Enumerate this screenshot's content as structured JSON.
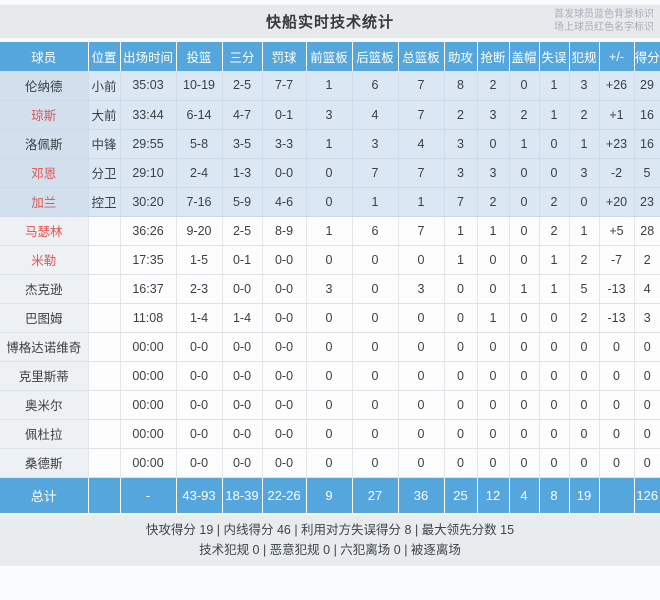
{
  "title": "快船实时技术统计",
  "legend": {
    "line1": "首发球员蓝色背景标识",
    "line2": "场上球员红色名字标识"
  },
  "columns": [
    {
      "key": "player",
      "label": "球员"
    },
    {
      "key": "pos",
      "label": "位置"
    },
    {
      "key": "min",
      "label": "出场时间"
    },
    {
      "key": "fg",
      "label": "投篮"
    },
    {
      "key": "three",
      "label": "三分"
    },
    {
      "key": "ft",
      "label": "罚球"
    },
    {
      "key": "oreb",
      "label": "前篮板"
    },
    {
      "key": "dreb",
      "label": "后篮板"
    },
    {
      "key": "treb",
      "label": "总篮板"
    },
    {
      "key": "ast",
      "label": "助攻"
    },
    {
      "key": "stl",
      "label": "抢断"
    },
    {
      "key": "blk",
      "label": "盖帽"
    },
    {
      "key": "tov",
      "label": "失误"
    },
    {
      "key": "pf",
      "label": "犯规"
    },
    {
      "key": "pm",
      "label": "+/-"
    },
    {
      "key": "pts",
      "label": "得分"
    }
  ],
  "players": [
    {
      "name": "伦纳德",
      "starter": true,
      "oncourt": false,
      "pos": "小前",
      "min": "35:03",
      "fg": "10-19",
      "three": "2-5",
      "ft": "7-7",
      "oreb": "1",
      "dreb": "6",
      "treb": "7",
      "ast": "8",
      "stl": "2",
      "blk": "0",
      "tov": "1",
      "pf": "3",
      "pm": "+26",
      "pts": "29"
    },
    {
      "name": "琼斯",
      "starter": true,
      "oncourt": true,
      "pos": "大前",
      "min": "33:44",
      "fg": "6-14",
      "three": "4-7",
      "ft": "0-1",
      "oreb": "3",
      "dreb": "4",
      "treb": "7",
      "ast": "2",
      "stl": "3",
      "blk": "2",
      "tov": "1",
      "pf": "2",
      "pm": "+1",
      "pts": "16"
    },
    {
      "name": "洛佩斯",
      "starter": true,
      "oncourt": false,
      "pos": "中锋",
      "min": "29:55",
      "fg": "5-8",
      "three": "3-5",
      "ft": "3-3",
      "oreb": "1",
      "dreb": "3",
      "treb": "4",
      "ast": "3",
      "stl": "0",
      "blk": "1",
      "tov": "0",
      "pf": "1",
      "pm": "+23",
      "pts": "16"
    },
    {
      "name": "邓恩",
      "starter": true,
      "oncourt": true,
      "pos": "分卫",
      "min": "29:10",
      "fg": "2-4",
      "three": "1-3",
      "ft": "0-0",
      "oreb": "0",
      "dreb": "7",
      "treb": "7",
      "ast": "3",
      "stl": "3",
      "blk": "0",
      "tov": "0",
      "pf": "3",
      "pm": "-2",
      "pts": "5"
    },
    {
      "name": "加兰",
      "starter": true,
      "oncourt": true,
      "pos": "控卫",
      "min": "30:20",
      "fg": "7-16",
      "three": "5-9",
      "ft": "4-6",
      "oreb": "0",
      "dreb": "1",
      "treb": "1",
      "ast": "7",
      "stl": "2",
      "blk": "0",
      "tov": "2",
      "pf": "0",
      "pm": "+20",
      "pts": "23"
    },
    {
      "name": "马瑟林",
      "starter": false,
      "oncourt": true,
      "pos": "",
      "min": "36:26",
      "fg": "9-20",
      "three": "2-5",
      "ft": "8-9",
      "oreb": "1",
      "dreb": "6",
      "treb": "7",
      "ast": "1",
      "stl": "1",
      "blk": "0",
      "tov": "2",
      "pf": "1",
      "pm": "+5",
      "pts": "28"
    },
    {
      "name": "米勒",
      "starter": false,
      "oncourt": true,
      "pos": "",
      "min": "17:35",
      "fg": "1-5",
      "three": "0-1",
      "ft": "0-0",
      "oreb": "0",
      "dreb": "0",
      "treb": "0",
      "ast": "1",
      "stl": "0",
      "blk": "0",
      "tov": "1",
      "pf": "2",
      "pm": "-7",
      "pts": "2"
    },
    {
      "name": "杰克逊",
      "starter": false,
      "oncourt": false,
      "pos": "",
      "min": "16:37",
      "fg": "2-3",
      "three": "0-0",
      "ft": "0-0",
      "oreb": "3",
      "dreb": "0",
      "treb": "3",
      "ast": "0",
      "stl": "0",
      "blk": "1",
      "tov": "1",
      "pf": "5",
      "pm": "-13",
      "pts": "4"
    },
    {
      "name": "巴图姆",
      "starter": false,
      "oncourt": false,
      "pos": "",
      "min": "11:08",
      "fg": "1-4",
      "three": "1-4",
      "ft": "0-0",
      "oreb": "0",
      "dreb": "0",
      "treb": "0",
      "ast": "0",
      "stl": "1",
      "blk": "0",
      "tov": "0",
      "pf": "2",
      "pm": "-13",
      "pts": "3"
    },
    {
      "name": "博格达诺维奇",
      "starter": false,
      "oncourt": false,
      "pos": "",
      "min": "00:00",
      "fg": "0-0",
      "three": "0-0",
      "ft": "0-0",
      "oreb": "0",
      "dreb": "0",
      "treb": "0",
      "ast": "0",
      "stl": "0",
      "blk": "0",
      "tov": "0",
      "pf": "0",
      "pm": "0",
      "pts": "0"
    },
    {
      "name": "克里斯蒂",
      "starter": false,
      "oncourt": false,
      "pos": "",
      "min": "00:00",
      "fg": "0-0",
      "three": "0-0",
      "ft": "0-0",
      "oreb": "0",
      "dreb": "0",
      "treb": "0",
      "ast": "0",
      "stl": "0",
      "blk": "0",
      "tov": "0",
      "pf": "0",
      "pm": "0",
      "pts": "0"
    },
    {
      "name": "奥米尔",
      "starter": false,
      "oncourt": false,
      "pos": "",
      "min": "00:00",
      "fg": "0-0",
      "three": "0-0",
      "ft": "0-0",
      "oreb": "0",
      "dreb": "0",
      "treb": "0",
      "ast": "0",
      "stl": "0",
      "blk": "0",
      "tov": "0",
      "pf": "0",
      "pm": "0",
      "pts": "0"
    },
    {
      "name": "佩杜拉",
      "starter": false,
      "oncourt": false,
      "pos": "",
      "min": "00:00",
      "fg": "0-0",
      "three": "0-0",
      "ft": "0-0",
      "oreb": "0",
      "dreb": "0",
      "treb": "0",
      "ast": "0",
      "stl": "0",
      "blk": "0",
      "tov": "0",
      "pf": "0",
      "pm": "0",
      "pts": "0"
    },
    {
      "name": "桑德斯",
      "starter": false,
      "oncourt": false,
      "pos": "",
      "min": "00:00",
      "fg": "0-0",
      "three": "0-0",
      "ft": "0-0",
      "oreb": "0",
      "dreb": "0",
      "treb": "0",
      "ast": "0",
      "stl": "0",
      "blk": "0",
      "tov": "0",
      "pf": "0",
      "pm": "0",
      "pts": "0"
    }
  ],
  "total": {
    "name": "总计",
    "pos": "",
    "min": "-",
    "fg": "43-93",
    "three": "18-39",
    "ft": "22-26",
    "oreb": "9",
    "dreb": "27",
    "treb": "36",
    "ast": "25",
    "stl": "12",
    "blk": "4",
    "tov": "8",
    "pf": "19",
    "pm": "",
    "pts": "126"
  },
  "footer": {
    "line1": [
      "快攻得分 19",
      "内线得分 46",
      "利用对方失误得分 8",
      "最大领先分数 15"
    ],
    "line2": [
      "技术犯规 0",
      "恶意犯规 0",
      "六犯离场 0",
      "被逐离场"
    ],
    "separator": " | "
  },
  "colors": {
    "header_blue": "#55a6dc",
    "starter_row_bg": "#dbe7f3",
    "oncourt_name_red": "#e05353",
    "titlebar_bg": "#e7eaed",
    "footer_bg": "#e9ecef"
  }
}
